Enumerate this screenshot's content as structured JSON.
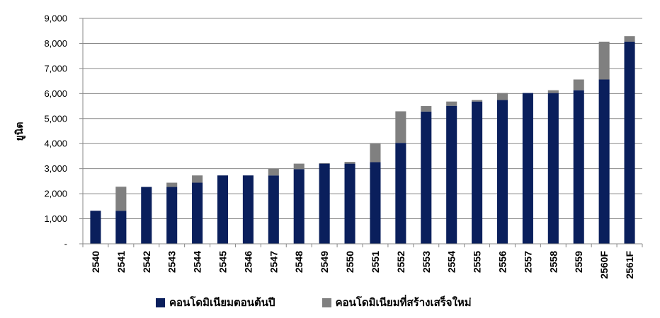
{
  "chart_data": {
    "type": "bar",
    "stacked": true,
    "ylabel": "ยูนิต",
    "ylim": [
      0,
      9000
    ],
    "yticks": [
      0,
      1000,
      2000,
      3000,
      4000,
      5000,
      6000,
      7000,
      8000,
      9000
    ],
    "ytick_labels": [
      "-",
      "1,000",
      "2,000",
      "3,000",
      "4,000",
      "5,000",
      "6,000",
      "7,000",
      "8,000",
      "9,000"
    ],
    "grid": true,
    "legend_position": "bottom",
    "categories": [
      "2540",
      "2541",
      "2542",
      "2543",
      "2544",
      "2545",
      "2546",
      "2547",
      "2548",
      "2549",
      "2550",
      "2551",
      "2552",
      "2553",
      "2554",
      "2555",
      "2556",
      "2557",
      "2558",
      "2559",
      "2560F",
      "2561F"
    ],
    "series": [
      {
        "name": "คอนโดมิเนียมตอนต้นปี",
        "color": "#0a1f5c",
        "values": [
          1320,
          1320,
          2270,
          2270,
          2440,
          2730,
          2730,
          2730,
          2980,
          3200,
          3200,
          3260,
          4030,
          5280,
          5510,
          5680,
          5740,
          6020,
          6020,
          6130,
          6560,
          8070
        ]
      },
      {
        "name": "คอนโดมิเนียมที่สร้างเสร็จใหม่",
        "color": "#808080",
        "values": [
          0,
          960,
          0,
          170,
          290,
          0,
          0,
          270,
          220,
          20,
          70,
          760,
          1260,
          220,
          170,
          60,
          280,
          0,
          110,
          430,
          1510,
          220
        ]
      }
    ]
  }
}
